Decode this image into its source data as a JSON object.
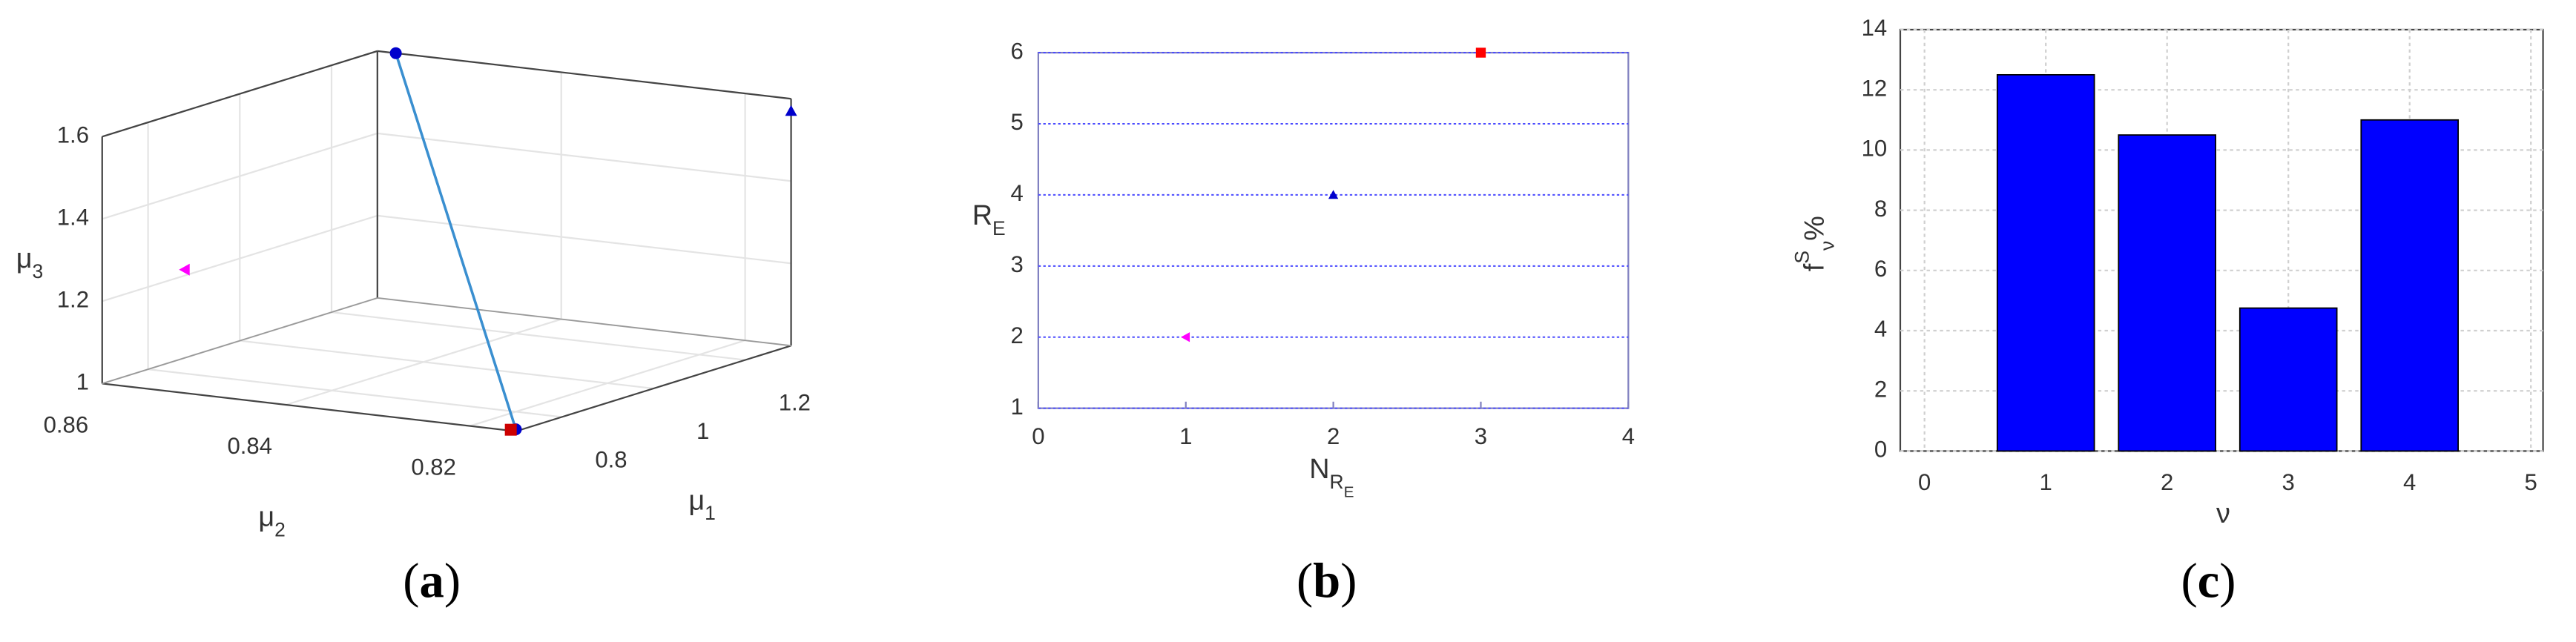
{
  "chart_data": [
    {
      "type": "scatter3d",
      "title": "(a)",
      "xlabel": {
        "text": "μ",
        "sub": "1"
      },
      "ylabel": {
        "text": "μ",
        "sub": "2"
      },
      "zlabel": {
        "text": "μ",
        "sub": "3"
      },
      "xlim": [
        0.7,
        1.3
      ],
      "ylim": [
        0.815,
        0.86
      ],
      "zlim": [
        1,
        1.6
      ],
      "xticks": [
        0.8,
        1,
        1.2
      ],
      "yticks": [
        0.82,
        0.84,
        0.86
      ],
      "zticks": [
        1,
        1.2,
        1.4,
        1.6
      ],
      "grid": true,
      "series": [
        {
          "color": "#0000cc",
          "marker": "circle",
          "line_color": "#3a8fd0",
          "x": [
            1.3,
            0.71
          ],
          "y": [
            0.858,
            0.8155
          ],
          "z": [
            1.6,
            1.0
          ]
        },
        {
          "color": "#cc0000",
          "marker": "square",
          "x": [
            0.705
          ],
          "y": [
            0.8158
          ],
          "z": [
            1.0
          ]
        },
        {
          "color": "#0000cc",
          "marker": "triangle",
          "x": [
            1.3
          ],
          "y": [
            0.815
          ],
          "z": [
            1.57
          ]
        },
        {
          "color": "#ff00ff",
          "marker": "triangle-left",
          "x": [
            0.7
          ],
          "y": [
            0.851
          ],
          "z": [
            1.3
          ]
        }
      ]
    },
    {
      "type": "scatter",
      "title": "(b)",
      "xlabel": {
        "text": "N",
        "sub": "R",
        "subsub": "E"
      },
      "ylabel": {
        "text": "R",
        "sub": "E"
      },
      "xlim": [
        0,
        4
      ],
      "ylim": [
        1,
        6
      ],
      "xticks": [
        0,
        1,
        2,
        3,
        4
      ],
      "yticks": [
        1,
        2,
        3,
        4,
        5,
        6
      ],
      "grid": true,
      "grid_color": "#4a4aff",
      "series": [
        {
          "color": "#ff00ff",
          "marker": "triangle-left",
          "x": [
            1
          ],
          "y": [
            2
          ]
        },
        {
          "color": "#0000cc",
          "marker": "triangle",
          "x": [
            2
          ],
          "y": [
            4
          ]
        },
        {
          "color": "#ff0000",
          "marker": "square",
          "x": [
            3
          ],
          "y": [
            6
          ]
        }
      ]
    },
    {
      "type": "bar",
      "title": "(c)",
      "xlabel": {
        "text": "ν"
      },
      "ylabel": {
        "text": "f",
        "sup": "S",
        "sub": "ν",
        "unit": "%"
      },
      "x": [
        1,
        2,
        3,
        4
      ],
      "values": [
        12.5,
        10.5,
        4.75,
        11
      ],
      "color": "#0000ff",
      "xlim": [
        -0.2,
        5.1
      ],
      "ylim": [
        0,
        14
      ],
      "xticks": [
        0,
        1,
        2,
        3,
        4,
        5
      ],
      "yticks": [
        0,
        2,
        4,
        6,
        8,
        10,
        12,
        14
      ],
      "grid": true,
      "grid_color": "#d0d0d0"
    }
  ]
}
